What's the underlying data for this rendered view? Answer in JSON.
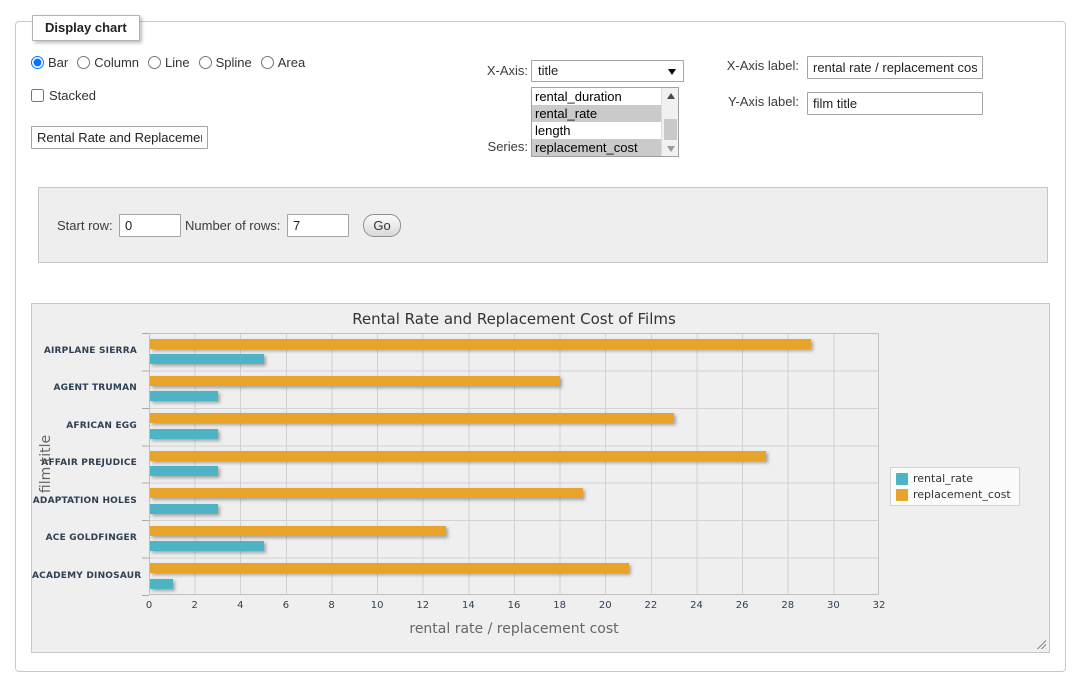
{
  "fieldset": {
    "legend": "Display chart"
  },
  "controls": {
    "chart_types": {
      "options": [
        "Bar",
        "Column",
        "Line",
        "Spline",
        "Area"
      ],
      "selected": "Bar"
    },
    "stacked": {
      "label": "Stacked",
      "checked": false
    },
    "chart_title_input": {
      "value": "Rental Rate and Replacement Cost of Films"
    },
    "x_axis": {
      "label": "X-Axis:",
      "selected": "title"
    },
    "series": {
      "label": "Series:",
      "options": [
        {
          "label": "rental_duration",
          "selected": false
        },
        {
          "label": "rental_rate",
          "selected": true
        },
        {
          "label": "length",
          "selected": false
        },
        {
          "label": "replacement_cost",
          "selected": true
        }
      ]
    },
    "x_axis_label": {
      "label": "X-Axis label:",
      "value": "rental rate / replacement cost"
    },
    "y_axis_label": {
      "label": "Y-Axis label:",
      "value": "film title"
    }
  },
  "row_controls": {
    "start_row": {
      "label": "Start row:",
      "value": "0"
    },
    "num_rows": {
      "label": "Number of rows:",
      "value": "7"
    },
    "go_label": "Go"
  },
  "icons": {
    "dropdown_arrow": "select-dropdown-arrow",
    "scroll_up": "scrollbar-up-arrow",
    "scroll_down": "scrollbar-down-arrow",
    "resize_grip": "resize-grip"
  },
  "chart_data": {
    "type": "bar",
    "title": "Rental Rate and Replacement Cost of Films",
    "categories": [
      "AIRPLANE SIERRA",
      "AGENT TRUMAN",
      "AFRICAN EGG",
      "AFFAIR PREJUDICE",
      "ADAPTATION HOLES",
      "ACE GOLDFINGER",
      "ACADEMY DINOSAUR"
    ],
    "series": [
      {
        "name": "rental_rate",
        "color": "#4DB3C5",
        "values": [
          4.99,
          2.99,
          2.99,
          2.99,
          2.99,
          4.99,
          0.99
        ]
      },
      {
        "name": "replacement_cost",
        "color": "#E8A32A",
        "values": [
          28.99,
          17.99,
          22.99,
          26.99,
          18.99,
          12.99,
          20.99
        ]
      }
    ],
    "xlabel": "rental rate / replacement cost",
    "ylabel": "film title",
    "xlim": [
      0,
      32
    ],
    "xticks": [
      0,
      2,
      4,
      6,
      8,
      10,
      12,
      14,
      16,
      18,
      20,
      22,
      24,
      26,
      28,
      30,
      32
    ],
    "grid": true,
    "legend_position": "right"
  }
}
